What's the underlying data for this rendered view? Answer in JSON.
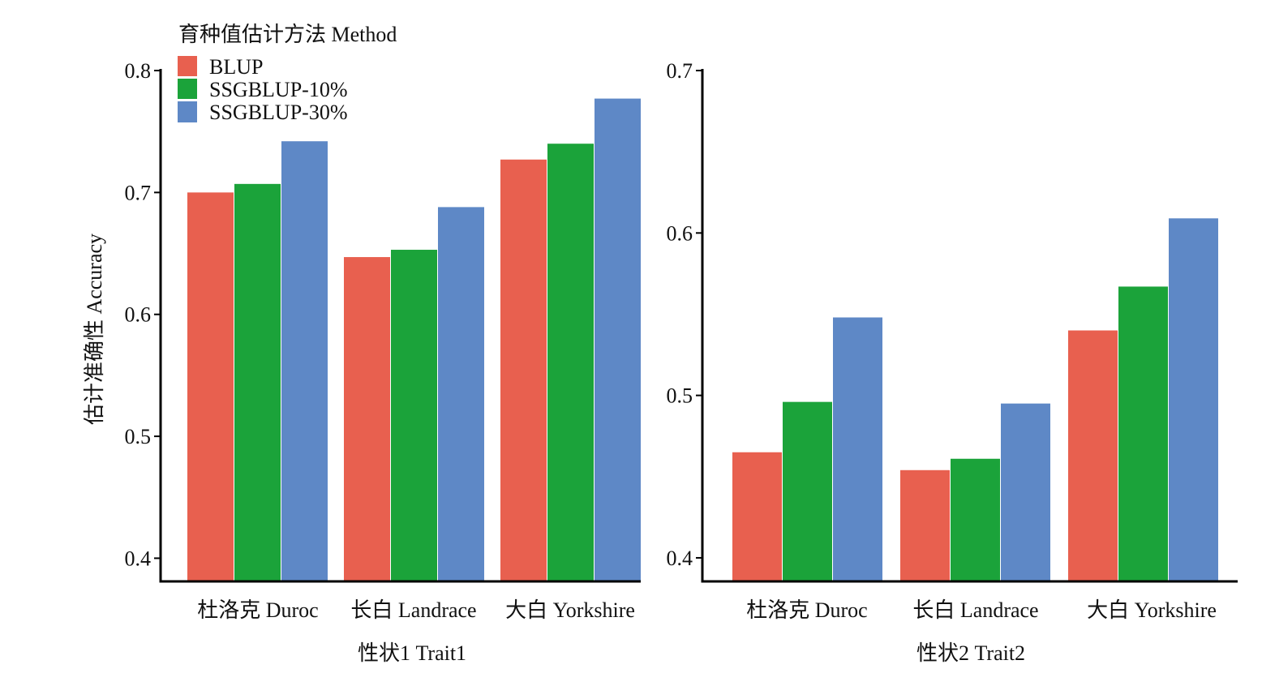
{
  "ylabel": "估计准确性 Accuracy",
  "legend": {
    "title": "育种值估计方法 Method",
    "placement": "top-left",
    "items": [
      {
        "label": "BLUP",
        "color": "#E8604F"
      },
      {
        "label": "SSGBLUP-10%",
        "color": "#1BA33A"
      },
      {
        "label": "SSGBLUP-30%",
        "color": "#5E88C6"
      }
    ]
  },
  "chart_data": [
    {
      "type": "bar",
      "xlabel": "性状1 Trait1",
      "ylabel": "估计准确性 Accuracy",
      "categories": [
        "杜洛克 Duroc",
        "长白 Landrace",
        "大白 Yorkshire"
      ],
      "series": [
        {
          "name": "BLUP",
          "color": "#E8604F",
          "values": [
            0.7,
            0.647,
            0.727
          ]
        },
        {
          "name": "SSGBLUP-10%",
          "color": "#1BA33A",
          "values": [
            0.707,
            0.653,
            0.74
          ]
        },
        {
          "name": "SSGBLUP-30%",
          "color": "#5E88C6",
          "values": [
            0.742,
            0.688,
            0.777
          ]
        }
      ],
      "ylim": [
        0.381,
        0.8
      ],
      "yticks": [
        "0.4",
        "0.5",
        "0.6",
        "0.7",
        "0.8"
      ],
      "ytick_values": [
        0.4,
        0.5,
        0.6,
        0.7,
        0.8
      ],
      "grid": false,
      "legend": "top-left"
    },
    {
      "type": "bar",
      "xlabel": "性状2 Trait2",
      "categories": [
        "杜洛克 Duroc",
        "长白 Landrace",
        "大白 Yorkshire"
      ],
      "series": [
        {
          "name": "BLUP",
          "color": "#E8604F",
          "values": [
            0.465,
            0.454,
            0.54
          ]
        },
        {
          "name": "SSGBLUP-10%",
          "color": "#1BA33A",
          "values": [
            0.496,
            0.461,
            0.567
          ]
        },
        {
          "name": "SSGBLUP-30%",
          "color": "#5E88C6",
          "values": [
            0.548,
            0.495,
            0.609
          ]
        }
      ],
      "ylim": [
        0.3855,
        0.7
      ],
      "yticks": [
        "0.4",
        "0.5",
        "0.6",
        "0.7"
      ],
      "ytick_values": [
        0.4,
        0.5,
        0.6,
        0.7
      ],
      "grid": false
    }
  ]
}
